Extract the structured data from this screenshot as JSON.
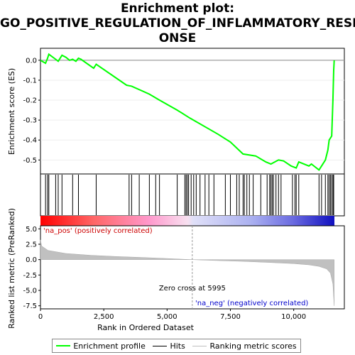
{
  "title_lines": [
    "Enrichment plot:",
    "GO_POSITIVE_REGULATION_OF_INFLAMMATORY_RESP",
    "ONSE"
  ],
  "chart_data": {
    "type": "line",
    "es_panel": {
      "ylabel": "Enrichment score (ES)",
      "yticks": [
        "0.0",
        "-0.1",
        "-0.2",
        "-0.3",
        "-0.4",
        "-0.5"
      ],
      "ytick_values": [
        0.0,
        -0.1,
        -0.2,
        -0.3,
        -0.4,
        -0.5
      ],
      "ylim": [
        -0.57,
        0.06
      ],
      "series": [
        {
          "name": "Enrichment profile",
          "color": "#00ff00",
          "points": [
            [
              0,
              0
            ],
            [
              200,
              -0.015
            ],
            [
              280,
              0.01
            ],
            [
              330,
              0.03
            ],
            [
              600,
              0.005
            ],
            [
              700,
              -0.005
            ],
            [
              850,
              0.025
            ],
            [
              1000,
              0.015
            ],
            [
              1150,
              0.0
            ],
            [
              1270,
              0.005
            ],
            [
              1400,
              -0.005
            ],
            [
              1500,
              0.01
            ],
            [
              1600,
              0.005
            ],
            [
              2100,
              -0.04
            ],
            [
              2200,
              -0.02
            ],
            [
              3400,
              -0.125
            ],
            [
              3600,
              -0.13
            ],
            [
              4300,
              -0.17
            ],
            [
              4700,
              -0.2
            ],
            [
              5400,
              -0.25
            ],
            [
              5900,
              -0.29
            ],
            [
              7000,
              -0.37
            ],
            [
              7500,
              -0.41
            ],
            [
              8000,
              -0.47
            ],
            [
              8500,
              -0.48
            ],
            [
              8900,
              -0.51
            ],
            [
              9100,
              -0.52
            ],
            [
              9400,
              -0.5
            ],
            [
              9600,
              -0.505
            ],
            [
              9900,
              -0.53
            ],
            [
              10100,
              -0.54
            ],
            [
              10200,
              -0.51
            ],
            [
              10600,
              -0.53
            ],
            [
              10700,
              -0.52
            ],
            [
              11000,
              -0.55
            ],
            [
              11100,
              -0.53
            ],
            [
              11250,
              -0.5
            ],
            [
              11350,
              -0.45
            ],
            [
              11400,
              -0.4
            ],
            [
              11500,
              -0.38
            ],
            [
              11550,
              -0.2
            ],
            [
              11580,
              -0.05
            ],
            [
              11600,
              0.0
            ]
          ]
        }
      ]
    },
    "hits": [
      200,
      280,
      330,
      600,
      700,
      850,
      1270,
      1500,
      2200,
      3500,
      3600,
      3900,
      4300,
      4550,
      4700,
      5400,
      5700,
      5750,
      5800,
      5850,
      5950,
      6050,
      6150,
      6300,
      6500,
      6650,
      6850,
      7300,
      7500,
      7750,
      7850,
      8000,
      8050,
      8150,
      8250,
      8400,
      8700,
      8950,
      9050,
      9100,
      9150,
      9200,
      9300,
      9400,
      9500,
      9950,
      10050,
      10100,
      10200,
      11000,
      11100,
      11250,
      11350,
      11400,
      11450,
      11500,
      11550,
      11580
    ],
    "metric_panel": {
      "ylabel": "Ranked list metric (PreRanked)",
      "yticks": [
        "5.0",
        "2.5",
        "0.0",
        "-2.5",
        "-5.0",
        "-7.5"
      ],
      "ytick_values": [
        5.0,
        2.5,
        0.0,
        -2.5,
        -5.0,
        -7.5
      ],
      "ylim": [
        -8.0,
        5.5
      ],
      "points": [
        [
          0,
          3.2
        ],
        [
          50,
          2.2
        ],
        [
          300,
          1.5
        ],
        [
          1000,
          1.0
        ],
        [
          2000,
          0.7
        ],
        [
          3000,
          0.5
        ],
        [
          4000,
          0.35
        ],
        [
          5000,
          0.18
        ],
        [
          5995,
          0.0
        ],
        [
          7000,
          -0.15
        ],
        [
          8000,
          -0.28
        ],
        [
          9000,
          -0.45
        ],
        [
          10000,
          -0.65
        ],
        [
          10600,
          -0.85
        ],
        [
          11000,
          -1.1
        ],
        [
          11300,
          -1.5
        ],
        [
          11450,
          -2.2
        ],
        [
          11550,
          -4.0
        ],
        [
          11600,
          -7.5
        ],
        [
          11600,
          0
        ]
      ],
      "pos_label": "'na_pos' (positively correlated)",
      "neg_label": "'na_neg' (negatively correlated)",
      "zero_cross_label": "Zero cross at 5995",
      "zero_cross": 5995
    },
    "xlabel": "Rank in Ordered Dataset",
    "xticks": [
      "0",
      "2,500",
      "5,000",
      "7,500",
      "10,000"
    ],
    "xtick_values": [
      0,
      2500,
      5000,
      7500,
      10000
    ],
    "xlim": [
      0,
      12000
    ],
    "legend": [
      {
        "label": "Enrichment profile",
        "color": "#00ff00"
      },
      {
        "label": "Hits",
        "color": "#000000"
      },
      {
        "label": "Ranking metric scores",
        "color": "#c0c0c0"
      }
    ]
  }
}
